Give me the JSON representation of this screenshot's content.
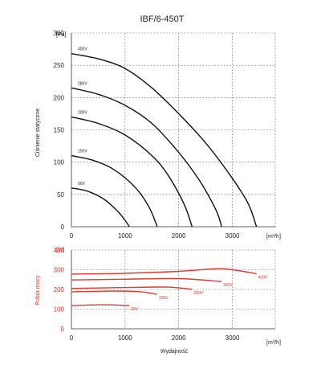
{
  "chart_data": [
    {
      "type": "line",
      "title": "IBF/6-450T",
      "ylabel": "Ciśnienie statyczne",
      "y_unit": "[Pa]",
      "x_unit": "[m³/h]",
      "xlim": [
        0,
        3800
      ],
      "ylim": [
        0,
        300
      ],
      "xticks": [
        "0",
        "1000",
        "2000",
        "3000"
      ],
      "yticks": [
        "0",
        "50",
        "100",
        "150",
        "200",
        "250",
        "300"
      ],
      "grid": true,
      "series": [
        {
          "name": "400V",
          "x": [
            0,
            500,
            1000,
            1500,
            2000,
            2500,
            3000,
            3300,
            3450
          ],
          "y": [
            268,
            260,
            245,
            215,
            175,
            130,
            75,
            35,
            0
          ]
        },
        {
          "name": "280V",
          "x": [
            0,
            500,
            1000,
            1500,
            2000,
            2400,
            2700,
            2800
          ],
          "y": [
            215,
            205,
            188,
            160,
            115,
            70,
            25,
            0
          ]
        },
        {
          "name": "200V",
          "x": [
            0,
            500,
            1000,
            1500,
            1800,
            2100,
            2250
          ],
          "y": [
            170,
            160,
            142,
            110,
            80,
            35,
            0
          ]
        },
        {
          "name": "150V",
          "x": [
            0,
            400,
            800,
            1200,
            1450,
            1600
          ],
          "y": [
            110,
            103,
            88,
            60,
            30,
            0
          ]
        },
        {
          "name": "90V",
          "x": [
            0,
            300,
            600,
            850,
            1000,
            1080
          ],
          "y": [
            60,
            55,
            43,
            25,
            10,
            0
          ]
        }
      ]
    },
    {
      "type": "line",
      "xlabel": "Wydajność",
      "ylabel": "Pobór mocy",
      "y_unit": "[W]",
      "x_unit": "[m³/h]",
      "xlim": [
        0,
        3800
      ],
      "ylim": [
        0,
        400
      ],
      "xticks": [
        "0",
        "1000",
        "2000",
        "3000"
      ],
      "yticks": [
        "0",
        "100",
        "200",
        "300",
        "400"
      ],
      "grid": true,
      "series": [
        {
          "name": "400V",
          "x": [
            0,
            1000,
            2000,
            2700,
            3000,
            3450
          ],
          "y": [
            278,
            282,
            292,
            305,
            300,
            280
          ]
        },
        {
          "name": "280V",
          "x": [
            0,
            1000,
            2000,
            2800
          ],
          "y": [
            248,
            252,
            255,
            240
          ]
        },
        {
          "name": "200V",
          "x": [
            0,
            1000,
            1800,
            2250
          ],
          "y": [
            205,
            210,
            212,
            200
          ]
        },
        {
          "name": "150V",
          "x": [
            0,
            800,
            1300,
            1600
          ],
          "y": [
            188,
            192,
            188,
            175
          ]
        },
        {
          "name": "90V",
          "x": [
            0,
            600,
            1080
          ],
          "y": [
            118,
            122,
            118
          ]
        }
      ]
    }
  ],
  "colors": {
    "pressure": "#111111",
    "power": "#e03a2e",
    "grid": "#555555"
  }
}
